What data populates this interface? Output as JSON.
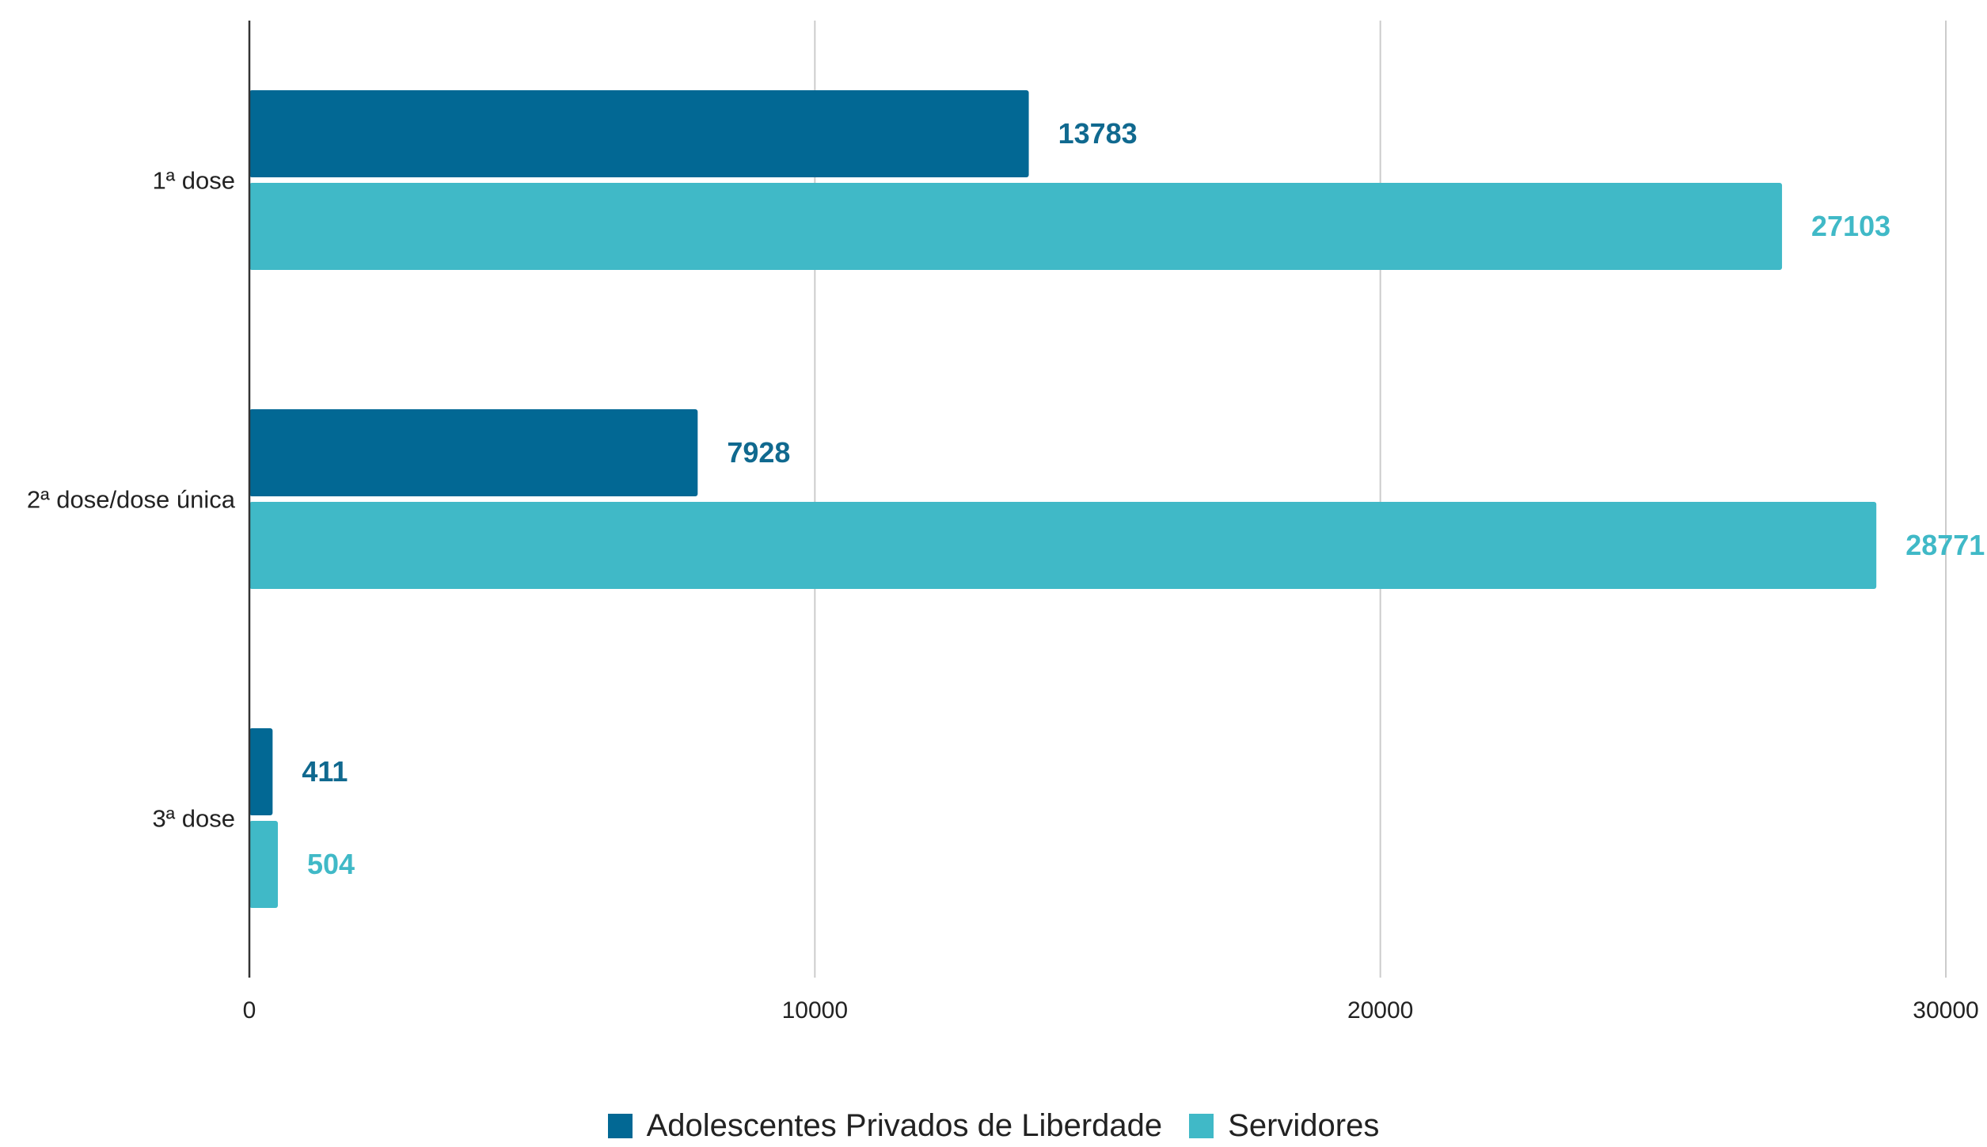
{
  "chart_data": {
    "type": "bar",
    "orientation": "horizontal",
    "categories": [
      "1ª dose",
      "2ª dose/dose única",
      "3ª dose"
    ],
    "series": [
      {
        "name": "Adolescentes Privados de Liberdade",
        "values": [
          13783,
          7928,
          411
        ],
        "color": "#026894"
      },
      {
        "name": "Servidores",
        "values": [
          27103,
          28771,
          504
        ],
        "color": "#40b9c7"
      }
    ],
    "xlim": [
      0,
      30000
    ],
    "xticks": [
      0,
      10000,
      20000,
      30000
    ],
    "xtick_labels": [
      "0",
      "10000",
      "20000",
      "30000"
    ],
    "data_labels": true,
    "grid": true,
    "legend_position": "bottom",
    "title": "",
    "xlabel": "",
    "ylabel": ""
  }
}
